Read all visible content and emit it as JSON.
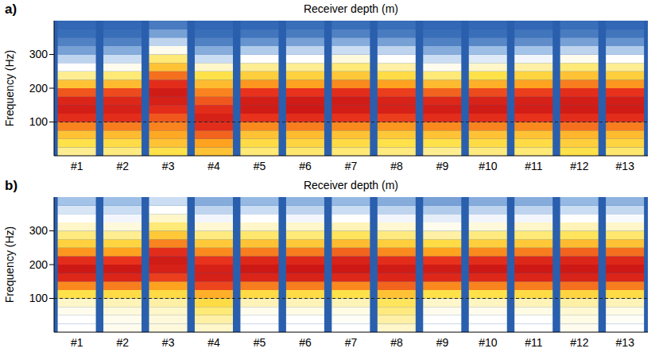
{
  "chart_data": [
    {
      "type": "heatmap",
      "panel": "a)",
      "title": "Receiver depth (m)",
      "y_label": "Frequency (Hz)",
      "categories": [
        "#1",
        "#2",
        "#3",
        "#4",
        "#5",
        "#6",
        "#7",
        "#8",
        "#9",
        "#10",
        "#11",
        "#12",
        "#13"
      ],
      "frequency_bins": [
        0,
        25,
        50,
        75,
        100,
        125,
        150,
        175,
        200,
        225,
        250,
        275,
        300,
        325,
        350,
        375,
        400
      ],
      "ylim": [
        0,
        400
      ],
      "yticks": [
        100,
        200,
        300
      ],
      "reference_line": 100,
      "color_range": [
        0,
        1
      ],
      "cells": [
        [
          0.42,
          0.5,
          0.6,
          0.75,
          0.9,
          0.96,
          0.93,
          0.82,
          0.6,
          0.42,
          0.3,
          0.2,
          0.1,
          0.05,
          0.02,
          0.01
        ],
        [
          0.44,
          0.52,
          0.62,
          0.76,
          0.9,
          0.95,
          0.92,
          0.84,
          0.62,
          0.45,
          0.32,
          0.22,
          0.12,
          0.05,
          0.02,
          0.01
        ],
        [
          0.5,
          0.6,
          0.68,
          0.75,
          0.82,
          0.9,
          0.95,
          0.97,
          0.9,
          0.78,
          0.6,
          0.45,
          0.32,
          0.2,
          0.1,
          0.04
        ],
        [
          0.6,
          0.7,
          0.8,
          0.9,
          0.95,
          0.9,
          0.82,
          0.75,
          0.62,
          0.5,
          0.36,
          0.22,
          0.12,
          0.05,
          0.02,
          0.01
        ],
        [
          0.45,
          0.52,
          0.6,
          0.74,
          0.88,
          0.97,
          0.96,
          0.88,
          0.72,
          0.56,
          0.42,
          0.3,
          0.18,
          0.08,
          0.03,
          0.01
        ],
        [
          0.46,
          0.54,
          0.62,
          0.76,
          0.9,
          0.98,
          0.97,
          0.88,
          0.7,
          0.55,
          0.42,
          0.3,
          0.2,
          0.1,
          0.04,
          0.02
        ],
        [
          0.45,
          0.52,
          0.6,
          0.74,
          0.88,
          0.96,
          0.97,
          0.9,
          0.74,
          0.58,
          0.45,
          0.34,
          0.22,
          0.12,
          0.05,
          0.02
        ],
        [
          0.44,
          0.5,
          0.58,
          0.72,
          0.86,
          0.95,
          0.94,
          0.86,
          0.7,
          0.52,
          0.4,
          0.3,
          0.2,
          0.1,
          0.04,
          0.02
        ],
        [
          0.42,
          0.5,
          0.6,
          0.74,
          0.9,
          0.96,
          0.92,
          0.8,
          0.62,
          0.45,
          0.32,
          0.22,
          0.12,
          0.05,
          0.02,
          0.01
        ],
        [
          0.44,
          0.52,
          0.6,
          0.75,
          0.9,
          0.97,
          0.94,
          0.84,
          0.66,
          0.5,
          0.36,
          0.25,
          0.15,
          0.06,
          0.02,
          0.01
        ],
        [
          0.45,
          0.52,
          0.6,
          0.74,
          0.88,
          0.96,
          0.95,
          0.86,
          0.7,
          0.54,
          0.4,
          0.28,
          0.16,
          0.07,
          0.03,
          0.01
        ],
        [
          0.5,
          0.56,
          0.64,
          0.78,
          0.9,
          0.97,
          0.96,
          0.9,
          0.76,
          0.6,
          0.45,
          0.32,
          0.2,
          0.1,
          0.04,
          0.02
        ],
        [
          0.46,
          0.54,
          0.62,
          0.76,
          0.9,
          0.97,
          0.96,
          0.88,
          0.72,
          0.56,
          0.42,
          0.3,
          0.18,
          0.08,
          0.03,
          0.01
        ]
      ]
    },
    {
      "type": "heatmap",
      "panel": "b)",
      "title": "Receiver depth (m)",
      "y_label": "Frequency (Hz)",
      "categories": [
        "#1",
        "#2",
        "#3",
        "#4",
        "#5",
        "#6",
        "#7",
        "#8",
        "#9",
        "#10",
        "#11",
        "#12",
        "#13"
      ],
      "frequency_bins": [
        0,
        25,
        50,
        75,
        100,
        125,
        150,
        175,
        200,
        225,
        250,
        275,
        300,
        325,
        350,
        375,
        400
      ],
      "ylim": [
        0,
        400
      ],
      "yticks": [
        100,
        200,
        300
      ],
      "reference_line": 100,
      "color_range": [
        0,
        1
      ],
      "cells": [
        [
          0.3,
          0.3,
          0.32,
          0.36,
          0.5,
          0.74,
          0.92,
          0.98,
          0.9,
          0.72,
          0.55,
          0.44,
          0.36,
          0.3,
          0.24,
          0.16
        ],
        [
          0.32,
          0.32,
          0.34,
          0.38,
          0.52,
          0.76,
          0.93,
          0.98,
          0.88,
          0.7,
          0.54,
          0.42,
          0.34,
          0.28,
          0.22,
          0.15
        ],
        [
          0.34,
          0.34,
          0.36,
          0.4,
          0.52,
          0.7,
          0.86,
          0.95,
          0.97,
          0.9,
          0.75,
          0.58,
          0.45,
          0.36,
          0.3,
          0.22
        ],
        [
          0.36,
          0.4,
          0.45,
          0.52,
          0.66,
          0.85,
          0.95,
          0.95,
          0.88,
          0.74,
          0.58,
          0.44,
          0.35,
          0.28,
          0.2,
          0.12
        ],
        [
          0.3,
          0.3,
          0.32,
          0.38,
          0.52,
          0.76,
          0.93,
          0.98,
          0.92,
          0.76,
          0.6,
          0.46,
          0.36,
          0.3,
          0.22,
          0.14
        ],
        [
          0.3,
          0.3,
          0.33,
          0.38,
          0.52,
          0.76,
          0.94,
          0.99,
          0.92,
          0.76,
          0.58,
          0.45,
          0.36,
          0.28,
          0.2,
          0.13
        ],
        [
          0.3,
          0.31,
          0.33,
          0.38,
          0.5,
          0.74,
          0.92,
          0.98,
          0.94,
          0.8,
          0.62,
          0.48,
          0.38,
          0.3,
          0.22,
          0.14
        ],
        [
          0.36,
          0.4,
          0.44,
          0.48,
          0.6,
          0.8,
          0.93,
          0.97,
          0.9,
          0.74,
          0.56,
          0.44,
          0.35,
          0.28,
          0.2,
          0.12
        ],
        [
          0.3,
          0.3,
          0.32,
          0.36,
          0.5,
          0.74,
          0.92,
          0.97,
          0.88,
          0.7,
          0.52,
          0.4,
          0.32,
          0.26,
          0.18,
          0.1
        ],
        [
          0.3,
          0.3,
          0.32,
          0.37,
          0.5,
          0.75,
          0.92,
          0.98,
          0.9,
          0.74,
          0.56,
          0.44,
          0.34,
          0.28,
          0.2,
          0.12
        ],
        [
          0.3,
          0.3,
          0.33,
          0.38,
          0.52,
          0.76,
          0.93,
          0.98,
          0.92,
          0.76,
          0.58,
          0.45,
          0.36,
          0.28,
          0.2,
          0.12
        ],
        [
          0.32,
          0.33,
          0.35,
          0.4,
          0.54,
          0.78,
          0.94,
          0.98,
          0.93,
          0.8,
          0.62,
          0.48,
          0.38,
          0.3,
          0.22,
          0.14
        ],
        [
          0.3,
          0.31,
          0.33,
          0.38,
          0.52,
          0.76,
          0.93,
          0.98,
          0.92,
          0.78,
          0.6,
          0.46,
          0.36,
          0.29,
          0.21,
          0.13
        ]
      ]
    }
  ]
}
